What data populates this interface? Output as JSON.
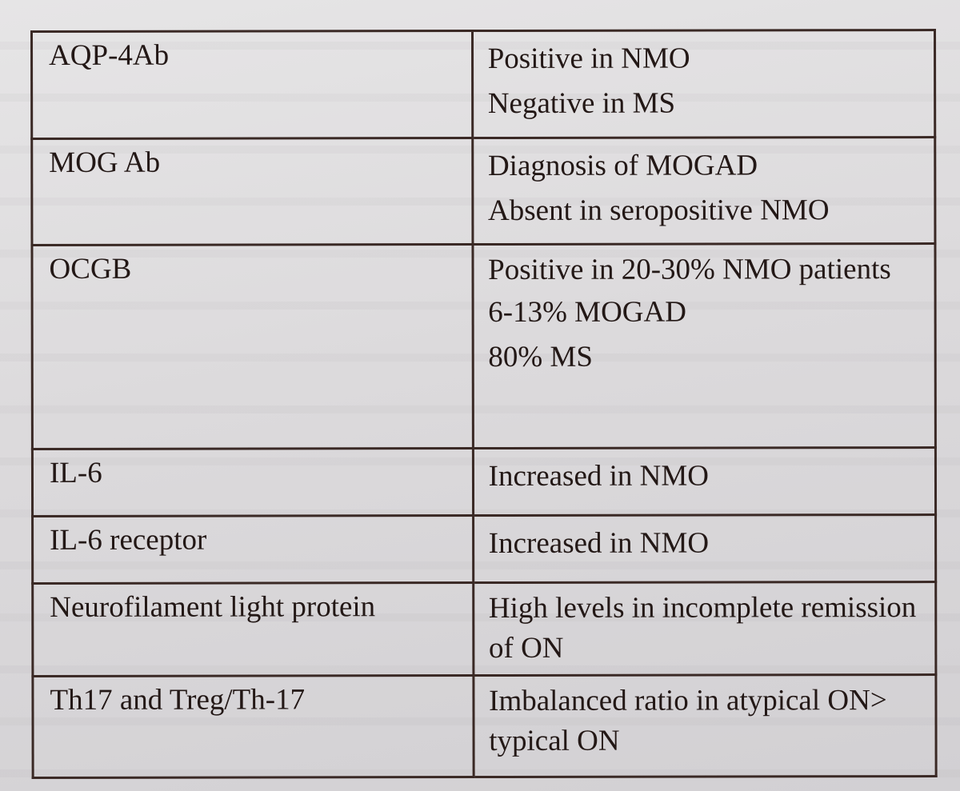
{
  "table": {
    "rows": [
      {
        "marker": "AQP-4Ab",
        "findings": [
          "Positive in NMO",
          "Negative in MS"
        ]
      },
      {
        "marker": "MOG Ab",
        "findings": [
          "Diagnosis of MOGAD",
          "Absent in seropositive NMO"
        ]
      },
      {
        "marker": "OCGB",
        "findings": [
          "Positive in 20-30% NMO patients",
          "6-13% MOGAD",
          "80% MS"
        ]
      },
      {
        "marker": "IL-6",
        "findings": [
          "Increased in NMO"
        ]
      },
      {
        "marker": "IL-6 receptor",
        "findings": [
          "Increased in NMO"
        ]
      },
      {
        "marker": "Neurofilament light protein",
        "findings": [
          "High levels in incomplete remission of ON"
        ]
      },
      {
        "marker": "Th17 and Treg/Th-17",
        "findings": [
          "Imbalanced ratio in atypical ON> typical ON"
        ]
      }
    ]
  }
}
